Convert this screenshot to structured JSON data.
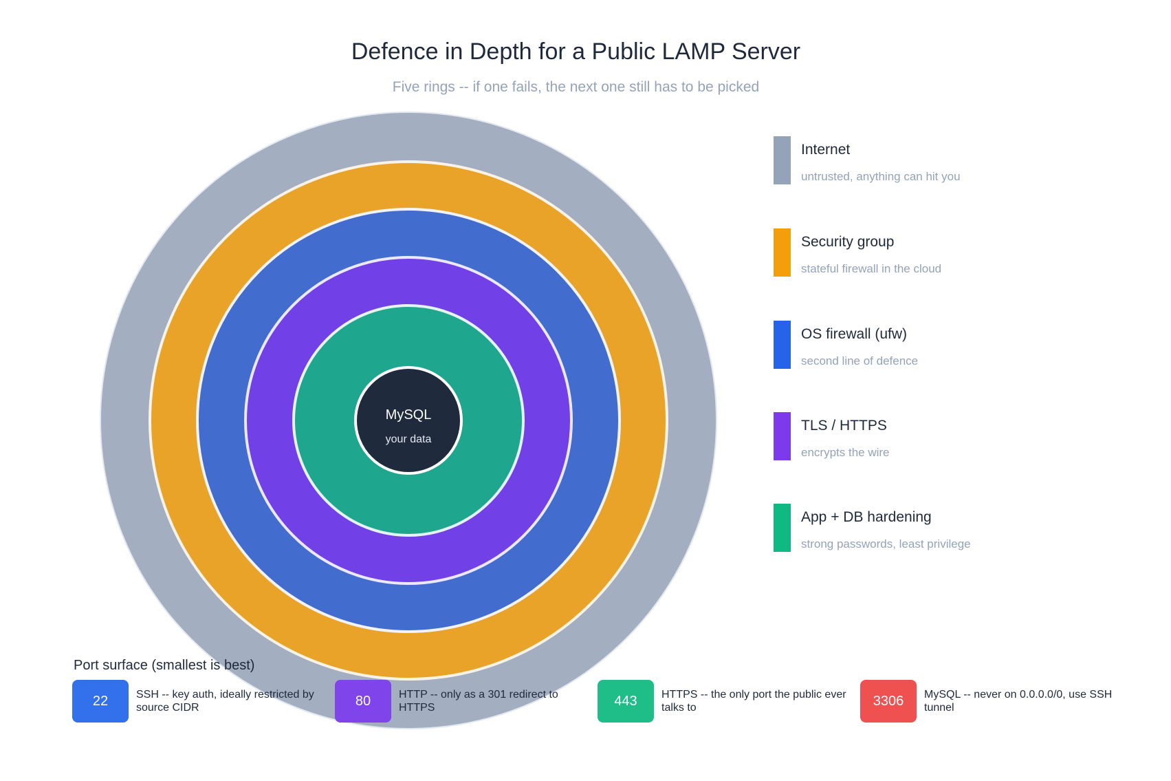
{
  "title": "Defence in Depth for a Public LAMP Server",
  "subtitle": "Five rings -- if one fails, the next one still has to be picked",
  "rings": [
    {
      "name": "Internet",
      "ring_color": "#a3aec0"
    },
    {
      "name": "Security group",
      "ring_color": "#e8a328"
    },
    {
      "name": "OS firewall (ufw)",
      "ring_color": "#426ccd"
    },
    {
      "name": "TLS / HTTPS",
      "ring_color": "#7140e6"
    },
    {
      "name": "App + DB hardening",
      "ring_color": "#1fa68f"
    }
  ],
  "core": {
    "label": "MySQL",
    "sublabel": "your data",
    "color": "#1f2a3c"
  },
  "legend": [
    {
      "label": "Internet",
      "desc": "untrusted, anything can hit you",
      "color": "#94a3b8"
    },
    {
      "label": "Security group",
      "desc": "stateful firewall in the cloud",
      "color": "#f59e0b"
    },
    {
      "label": "OS firewall (ufw)",
      "desc": "second line of defence",
      "color": "#2563eb"
    },
    {
      "label": "TLS / HTTPS",
      "desc": "encrypts the wire",
      "color": "#7c3aed"
    },
    {
      "label": "App + DB hardening",
      "desc": "strong passwords, least privilege",
      "color": "#10b981"
    }
  ],
  "ports": {
    "heading": "Port surface (smallest is best)",
    "items": [
      {
        "port": "22",
        "desc": "SSH -- key auth, ideally restricted by source CIDR",
        "color": "#3370ec"
      },
      {
        "port": "80",
        "desc": "HTTP -- only as a 301 redirect to HTTPS",
        "color": "#7f44ea"
      },
      {
        "port": "443",
        "desc": "HTTPS -- the only port the public ever talks to",
        "color": "#1fbd87"
      },
      {
        "port": "3306",
        "desc": "MySQL -- never on 0.0.0.0/0, use SSH tunnel",
        "color": "#ef5151"
      }
    ]
  }
}
